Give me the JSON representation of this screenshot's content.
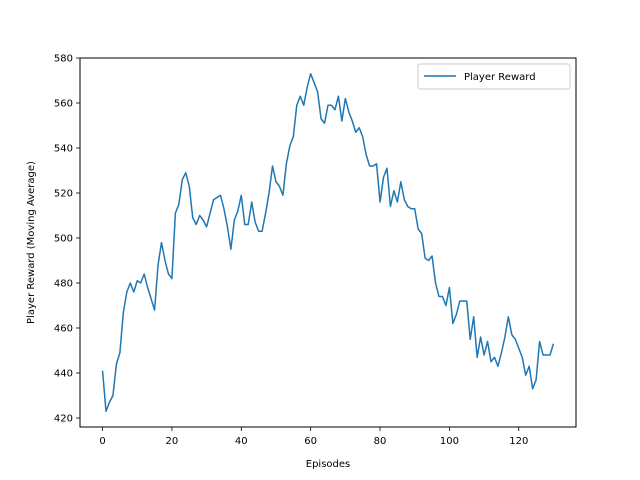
{
  "chart_data": {
    "type": "line",
    "title": "",
    "xlabel": "Episodes",
    "ylabel": "Player Reward (Moving Average)",
    "xlim": [
      -6.5,
      136.5
    ],
    "ylim": [
      416,
      580
    ],
    "xticks": [
      0,
      20,
      40,
      60,
      80,
      100,
      120
    ],
    "yticks": [
      420,
      440,
      460,
      480,
      500,
      520,
      540,
      560,
      580
    ],
    "grid": false,
    "legend": {
      "position": "top-right",
      "entries": [
        "Player Reward"
      ]
    },
    "series": [
      {
        "name": "Player Reward",
        "color": "#1f77b4",
        "x": [
          0,
          1,
          2,
          3,
          4,
          5,
          6,
          7,
          8,
          9,
          10,
          11,
          12,
          13,
          14,
          15,
          16,
          17,
          18,
          19,
          20,
          21,
          22,
          23,
          24,
          25,
          26,
          27,
          28,
          29,
          30,
          31,
          32,
          33,
          34,
          35,
          36,
          37,
          38,
          39,
          40,
          41,
          42,
          43,
          44,
          45,
          46,
          47,
          48,
          49,
          50,
          51,
          52,
          53,
          54,
          55,
          56,
          57,
          58,
          59,
          60,
          61,
          62,
          63,
          64,
          65,
          66,
          67,
          68,
          69,
          70,
          71,
          72,
          73,
          74,
          75,
          76,
          77,
          78,
          79,
          80,
          81,
          82,
          83,
          84,
          85,
          86,
          87,
          88,
          89,
          90,
          91,
          92,
          93,
          94,
          95,
          96,
          97,
          98,
          99,
          100,
          101,
          102,
          103,
          104,
          105,
          106,
          107,
          108,
          109,
          110,
          111,
          112,
          113,
          114,
          115,
          116,
          117,
          118,
          119,
          120,
          121,
          122,
          123,
          124,
          125,
          126,
          127,
          128,
          129,
          130
        ],
        "y": [
          441,
          423,
          427,
          430,
          444,
          449,
          467,
          476,
          480,
          476,
          481,
          480,
          484,
          478,
          473,
          468,
          488,
          498,
          490,
          484,
          482,
          511,
          515,
          526,
          529,
          523,
          509,
          506,
          510,
          508,
          505,
          511,
          517,
          518,
          519,
          513,
          505,
          495,
          508,
          512,
          519,
          506,
          506,
          516,
          507,
          503,
          503,
          511,
          520,
          532,
          525,
          523,
          519,
          533,
          541,
          545,
          559,
          563,
          559,
          567,
          573,
          569,
          565,
          553,
          551,
          559,
          559,
          557,
          563,
          552,
          562,
          556,
          552,
          547,
          549,
          545,
          537,
          532,
          532,
          533,
          516,
          527,
          531,
          514,
          521,
          516,
          525,
          517,
          514,
          513,
          513,
          504,
          502,
          491,
          490,
          492,
          480,
          474,
          474,
          470,
          478,
          462,
          466,
          472,
          472,
          472,
          455,
          465,
          447,
          456,
          448,
          454,
          445,
          447,
          443,
          449,
          456,
          465,
          457,
          455,
          451,
          447,
          439,
          443,
          433,
          437,
          454,
          448,
          448,
          448,
          453
        ]
      }
    ]
  }
}
